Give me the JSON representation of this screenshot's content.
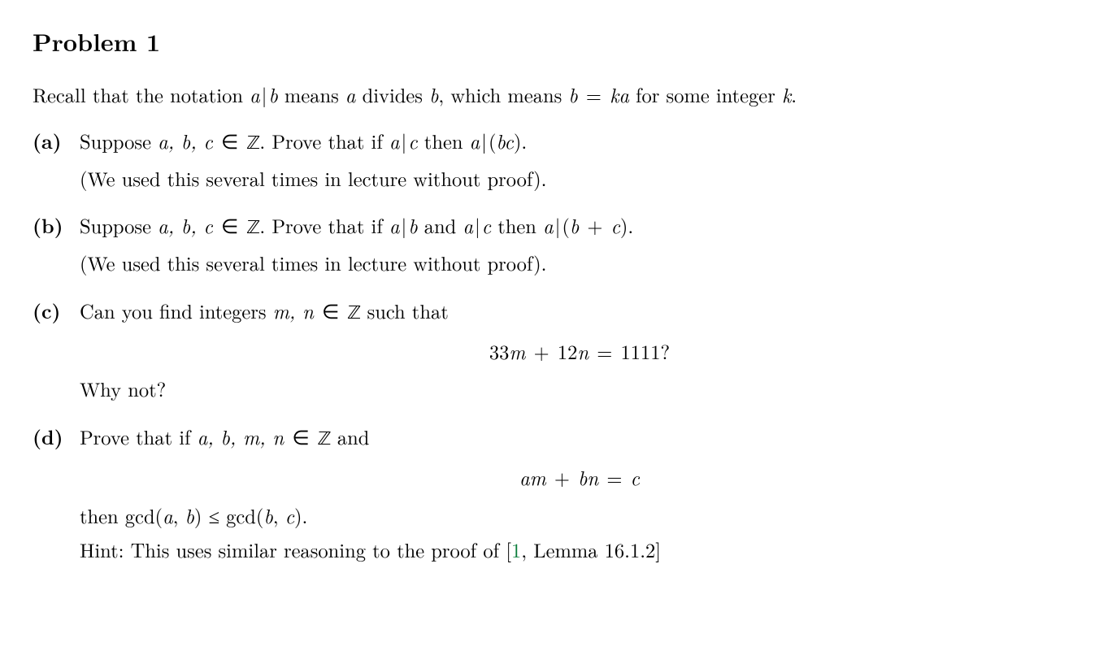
{
  "title": "Problem 1",
  "intro": {
    "pre": "Recall that the notation ",
    "expr1_a": "a",
    "expr1_bar": "|",
    "expr1_b": "b",
    "mid1": " means ",
    "a2": "a",
    "mid2": " divides ",
    "b2": "b",
    "mid3": ", which means ",
    "eq_b": "b",
    "eq_rel": " = ",
    "eq_k": "k",
    "eq_a": "a",
    "post": " for some integer ",
    "k2": "k",
    "end": "."
  },
  "parts": {
    "a": {
      "label": "(a)",
      "l1": {
        "t1": "Suppose ",
        "vars": "a, b, c",
        "in": " ∈ ",
        "Z": "ℤ",
        "t2": ". Prove that if ",
        "e1a": "a",
        "e1bar": "|",
        "e1c": "c",
        "t3": " then ",
        "e2a": "a",
        "e2bar": "|",
        "e2bc_l": "(",
        "e2b": "b",
        "e2c": "c",
        "e2bc_r": ")",
        "end": "."
      },
      "l2": "(We used this several times in lecture without proof)."
    },
    "b": {
      "label": "(b)",
      "l1": {
        "t1": "Suppose ",
        "vars": "a, b, c",
        "in": " ∈ ",
        "Z": "ℤ",
        "t2": ". Prove that if ",
        "e1a": "a",
        "e1bar": "|",
        "e1b": "b",
        "t3": " and ",
        "e2a": "a",
        "e2bar": "|",
        "e2c": "c",
        "t4": " then ",
        "e3a": "a",
        "e3bar": "|",
        "e3l": "(",
        "e3b": "b",
        "e3plus": " + ",
        "e3c": "c",
        "e3r": ")",
        "end": "."
      },
      "l2": "(We used this several times in lecture without proof)."
    },
    "c": {
      "label": "(c)",
      "l1": {
        "t1": "Can you find integers ",
        "vars": "m, n",
        "in": " ∈ ",
        "Z": "ℤ",
        "t2": " such that"
      },
      "eq": {
        "c33": "33",
        "m": "m",
        "plus": " + ",
        "c12": "12",
        "n": "n",
        "rel": " = ",
        "rhs": "1111?",
        "_ignore": ""
      },
      "l2": "Why not?"
    },
    "d": {
      "label": "(d)",
      "l1": {
        "t1": "Prove that if ",
        "vars": "a, b, m, n",
        "in": " ∈ ",
        "Z": "ℤ",
        "t2": " and"
      },
      "eq": {
        "a": "a",
        "m": "m",
        "plus": " + ",
        "b": "b",
        "n": "n",
        "rel": " = ",
        "c": "c"
      },
      "l2": {
        "t1": "then gcd(",
        "a": "a",
        "comma1": ", ",
        "b": "b",
        "t2": ") ≤ gcd(",
        "b2": "b",
        "comma2": ", ",
        "c": "c",
        "t3": ")."
      },
      "hint": {
        "t1": "Hint: This uses similar reasoning to the proof of [",
        "ref": "1",
        "t2": ", Lemma 16.1.2]"
      }
    }
  },
  "colors": {
    "text": "#000000",
    "background": "#ffffff",
    "citation": "#0a7d3a"
  },
  "typography": {
    "body_fontsize_pt": 18,
    "title_fontsize_pt": 22,
    "family": "Computer Modern / Latin Modern (serif)"
  }
}
